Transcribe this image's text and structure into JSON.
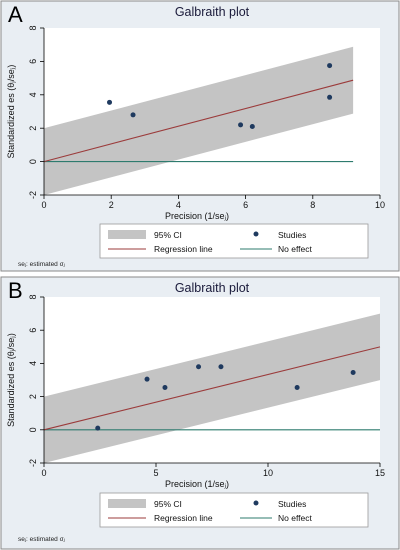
{
  "chart_data": [
    {
      "panel": "A",
      "type": "scatter",
      "title": "Galbraith plot",
      "xlabel": "Precision (1/seⱼ)",
      "ylabel": "Standardized es   (θⱼ/seⱼ)",
      "xlim": [
        0,
        10
      ],
      "ylim": [
        -2,
        8
      ],
      "xticks": [
        0,
        2,
        4,
        6,
        8,
        10
      ],
      "yticks": [
        -2,
        0,
        2,
        4,
        6,
        8
      ],
      "regression": {
        "slope": 0.53,
        "x_end": 9.2
      },
      "ci_halfwidth": 2,
      "no_effect_y": 0,
      "points": [
        {
          "x": 1.95,
          "y": 3.55
        },
        {
          "x": 2.65,
          "y": 2.8
        },
        {
          "x": 5.85,
          "y": 2.2
        },
        {
          "x": 6.2,
          "y": 2.1
        },
        {
          "x": 8.5,
          "y": 5.75
        },
        {
          "x": 8.5,
          "y": 3.85
        }
      ],
      "legend": [
        "95% CI",
        "Studies",
        "Regression line",
        "No effect"
      ],
      "note": "seⱼ: estimated σⱼ",
      "grid": false
    },
    {
      "panel": "B",
      "type": "scatter",
      "title": "Galbraith plot",
      "xlabel": "Precision (1/seⱼ)",
      "ylabel": "Standardized es   (θⱼ/seⱼ)",
      "xlim": [
        0,
        15
      ],
      "ylim": [
        -2,
        8
      ],
      "xticks": [
        0,
        5,
        10,
        15
      ],
      "yticks": [
        -2,
        0,
        2,
        4,
        6,
        8
      ],
      "regression": {
        "slope": 0.333,
        "x_end": 15
      },
      "ci_halfwidth": 2,
      "no_effect_y": 0,
      "points": [
        {
          "x": 2.4,
          "y": 0.1
        },
        {
          "x": 4.6,
          "y": 3.05
        },
        {
          "x": 5.4,
          "y": 2.55
        },
        {
          "x": 6.9,
          "y": 3.8
        },
        {
          "x": 7.9,
          "y": 3.8
        },
        {
          "x": 11.3,
          "y": 2.55
        },
        {
          "x": 13.8,
          "y": 3.45
        }
      ],
      "legend": [
        "95% CI",
        "Studies",
        "Regression line",
        "No effect"
      ],
      "note": "seⱼ: estimated σⱼ",
      "grid": false
    }
  ],
  "colors": {
    "ci_band": "#c4c4c4",
    "regression": "#9b3b3b",
    "no_effect": "#2e7b6e",
    "points": "#1f3a5f",
    "plot_bg": "#ffffff",
    "outer_bg": "#e9eef3"
  }
}
